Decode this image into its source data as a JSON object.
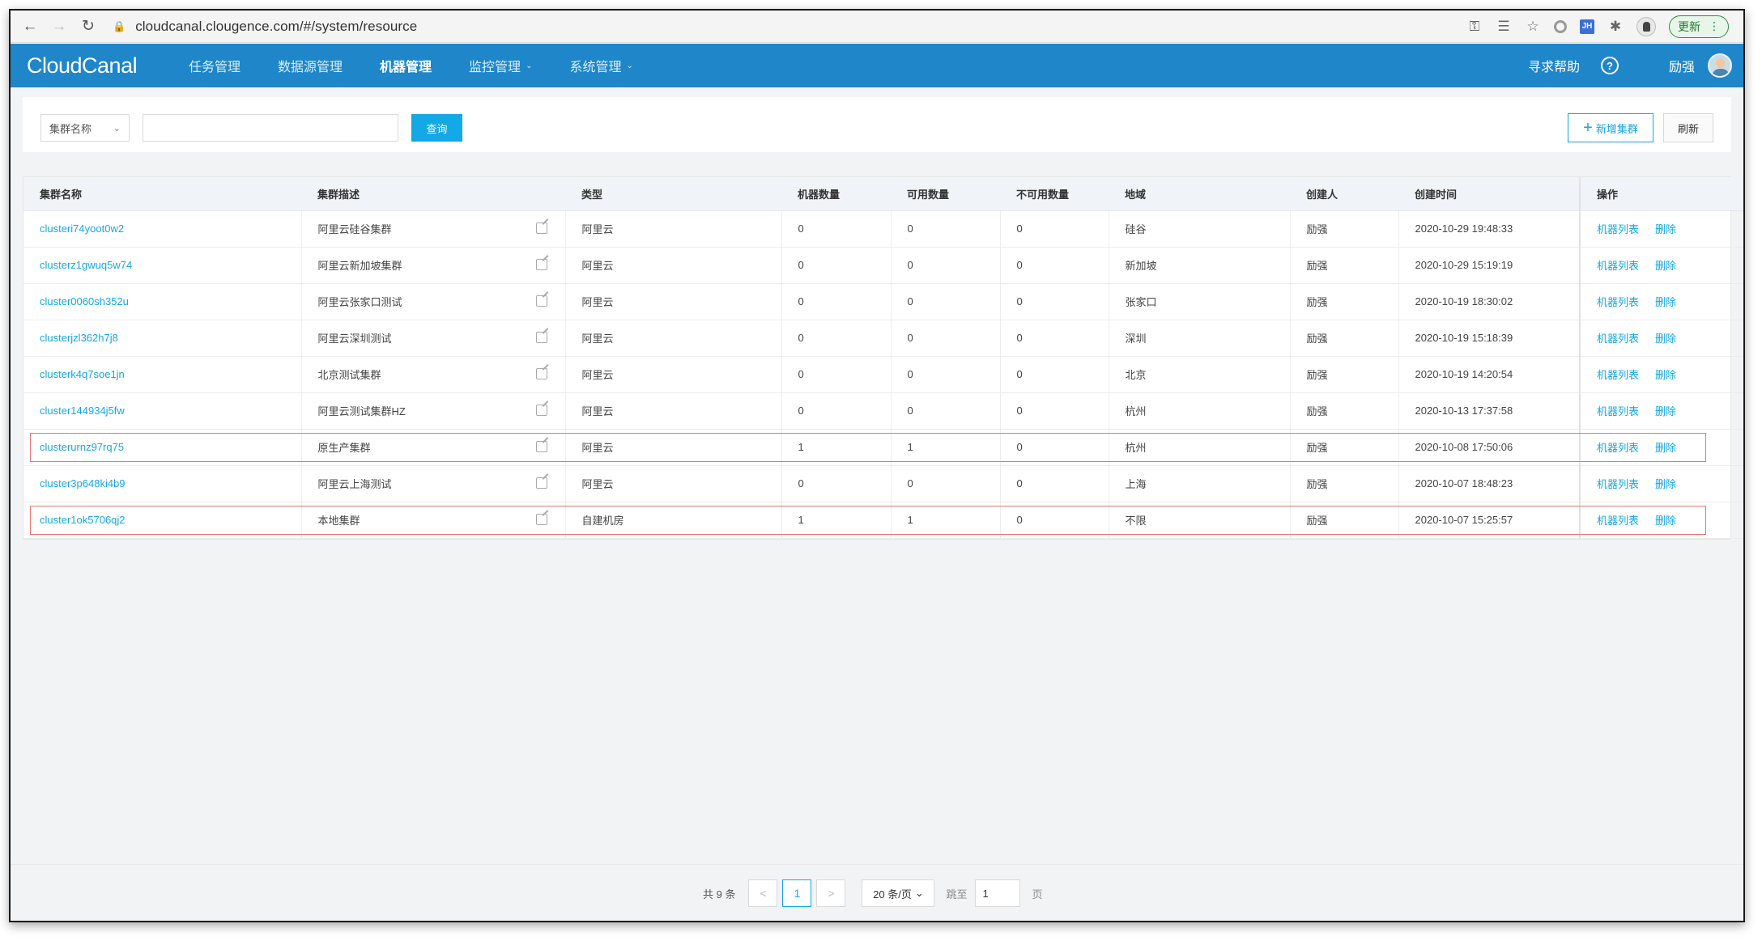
{
  "browser": {
    "url": "cloudcanal.clougence.com/#/system/resource",
    "update_label": "更新"
  },
  "app": {
    "logo": "CloudCanal",
    "menu": [
      {
        "label": "任务管理",
        "active": false,
        "dropdown": false
      },
      {
        "label": "数据源管理",
        "active": false,
        "dropdown": false
      },
      {
        "label": "机器管理",
        "active": true,
        "dropdown": false
      },
      {
        "label": "监控管理",
        "active": false,
        "dropdown": true
      },
      {
        "label": "系统管理",
        "active": false,
        "dropdown": true
      }
    ],
    "help_label": "寻求帮助",
    "user_name": "励强"
  },
  "filter": {
    "select_label": "集群名称",
    "search_value": "",
    "query_label": "查询",
    "add_label": "新增集群",
    "refresh_label": "刷新"
  },
  "table": {
    "columns": [
      "集群名称",
      "集群描述",
      "类型",
      "机器数量",
      "可用数量",
      "不可用数量",
      "地域",
      "创建人",
      "创建时间",
      "操作"
    ],
    "op_labels": {
      "machines": "机器列表",
      "delete": "删除"
    },
    "rows": [
      {
        "name": "clusteri74yoot0w2",
        "desc": "阿里云硅谷集群",
        "type": "阿里云",
        "machines": "0",
        "available": "0",
        "unavailable": "0",
        "region": "硅谷",
        "creator": "励强",
        "created": "2020-10-29 19:48:33",
        "highlight": false
      },
      {
        "name": "clusterz1gwuq5w74",
        "desc": "阿里云新加坡集群",
        "type": "阿里云",
        "machines": "0",
        "available": "0",
        "unavailable": "0",
        "region": "新加坡",
        "creator": "励强",
        "created": "2020-10-29 15:19:19",
        "highlight": false
      },
      {
        "name": "cluster0060sh352u",
        "desc": "阿里云张家口测试",
        "type": "阿里云",
        "machines": "0",
        "available": "0",
        "unavailable": "0",
        "region": "张家口",
        "creator": "励强",
        "created": "2020-10-19 18:30:02",
        "highlight": false
      },
      {
        "name": "clusterjzl362h7j8",
        "desc": "阿里云深圳测试",
        "type": "阿里云",
        "machines": "0",
        "available": "0",
        "unavailable": "0",
        "region": "深圳",
        "creator": "励强",
        "created": "2020-10-19 15:18:39",
        "highlight": false
      },
      {
        "name": "clusterk4q7soe1jn",
        "desc": "北京测试集群",
        "type": "阿里云",
        "machines": "0",
        "available": "0",
        "unavailable": "0",
        "region": "北京",
        "creator": "励强",
        "created": "2020-10-19 14:20:54",
        "highlight": false
      },
      {
        "name": "cluster144934j5fw",
        "desc": "阿里云测试集群HZ",
        "type": "阿里云",
        "machines": "0",
        "available": "0",
        "unavailable": "0",
        "region": "杭州",
        "creator": "励强",
        "created": "2020-10-13 17:37:58",
        "highlight": false
      },
      {
        "name": "clusterurnz97rq75",
        "desc": "原生产集群",
        "type": "阿里云",
        "machines": "1",
        "available": "1",
        "unavailable": "0",
        "region": "杭州",
        "creator": "励强",
        "created": "2020-10-08 17:50:06",
        "highlight": true
      },
      {
        "name": "cluster3p648ki4b9",
        "desc": "阿里云上海测试",
        "type": "阿里云",
        "machines": "0",
        "available": "0",
        "unavailable": "0",
        "region": "上海",
        "creator": "励强",
        "created": "2020-10-07 18:48:23",
        "highlight": false
      },
      {
        "name": "cluster1ok5706qj2",
        "desc": "本地集群",
        "type": "自建机房",
        "machines": "1",
        "available": "1",
        "unavailable": "0",
        "region": "不限",
        "creator": "励强",
        "created": "2020-10-07 15:25:57",
        "highlight": true
      }
    ]
  },
  "pagination": {
    "total_label": "共 9 条",
    "prev": "<",
    "next": ">",
    "current_page": "1",
    "page_size": "20 条/页",
    "jump_label": "跳至",
    "jump_value": "1",
    "page_unit": "页"
  },
  "colors": {
    "header_blue": "#1e86c9",
    "link_blue": "#13a8e6",
    "highlight_red": "#e6776b"
  }
}
